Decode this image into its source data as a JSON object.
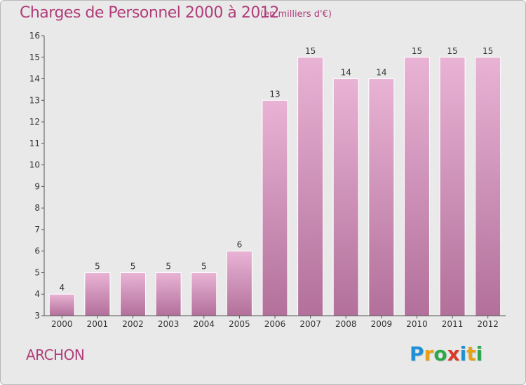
{
  "header": {
    "title": "Charges de Personnel 2000 à 2012",
    "unit": "(en milliers d'€)"
  },
  "footer": {
    "commune": "ARCHON",
    "logo_text": "Proxiti",
    "logo_letters": [
      {
        "ch": "P",
        "color": "#1e90d6"
      },
      {
        "ch": "r",
        "color": "#e6a117"
      },
      {
        "ch": "o",
        "color": "#2aa84a"
      },
      {
        "ch": "x",
        "color": "#d63a2a"
      },
      {
        "ch": "i",
        "color": "#1e90d6"
      },
      {
        "ch": "t",
        "color": "#e6a117"
      },
      {
        "ch": "i",
        "color": "#2aa84a"
      }
    ]
  },
  "colors": {
    "bar_top": "#e9b3d5",
    "bar_bottom": "#b2709a",
    "accent": "#b03d7a"
  },
  "chart_data": {
    "type": "bar",
    "categories": [
      "2000",
      "2001",
      "2002",
      "2003",
      "2004",
      "2005",
      "2006",
      "2007",
      "2008",
      "2009",
      "2010",
      "2011",
      "2012"
    ],
    "values": [
      4,
      5,
      5,
      5,
      5,
      6,
      13,
      15,
      14,
      14,
      15,
      15,
      15
    ],
    "ylim": [
      3,
      16
    ],
    "yticks": [
      3,
      4,
      5,
      6,
      7,
      8,
      9,
      10,
      11,
      12,
      13,
      14,
      15,
      16
    ],
    "grid": false
  }
}
